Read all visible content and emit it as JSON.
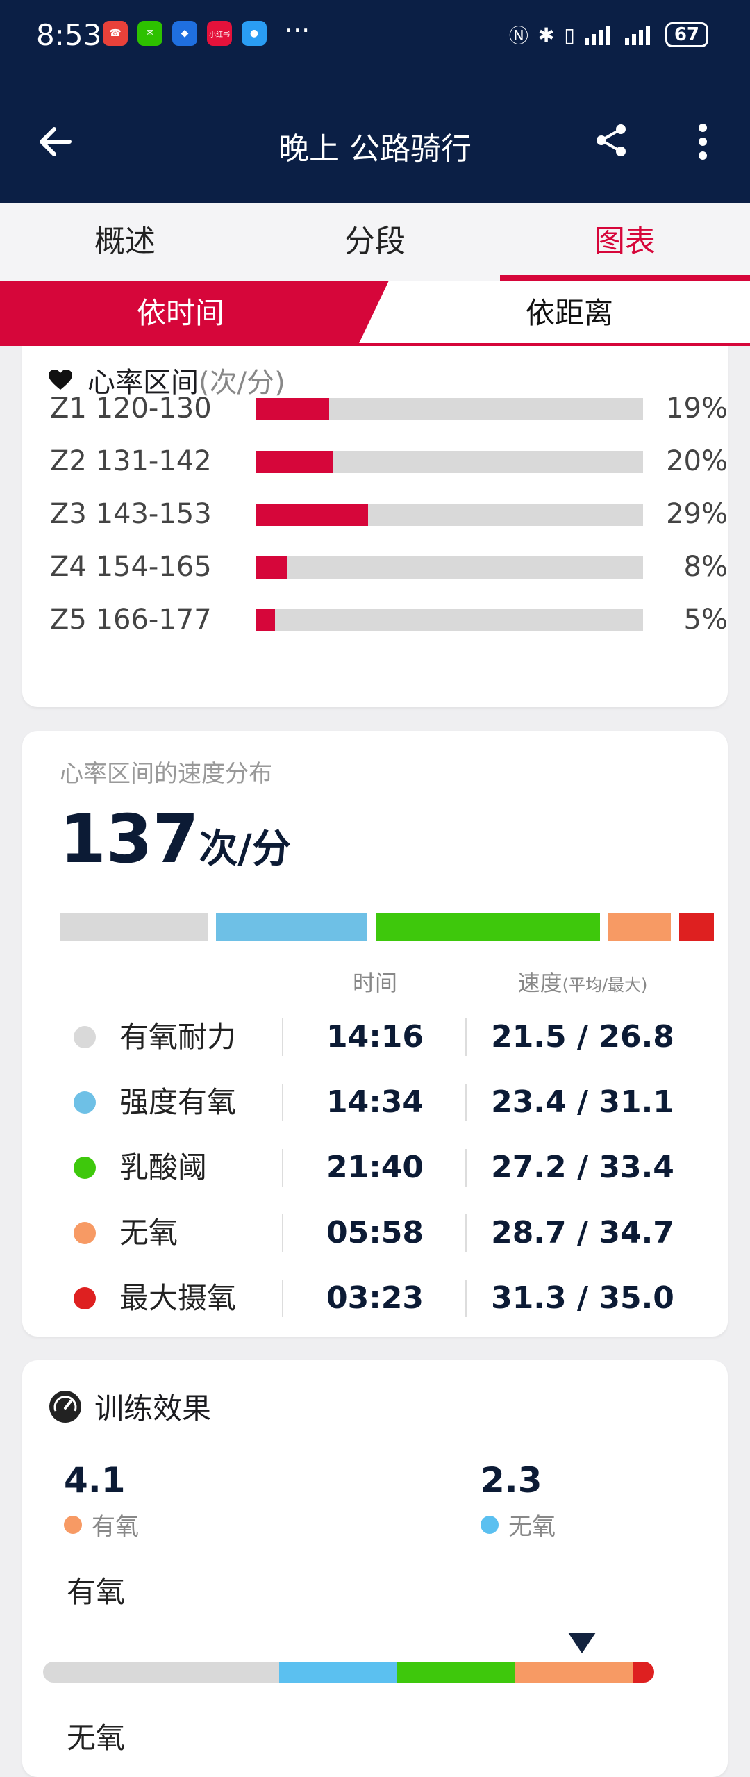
{
  "status_bar": {
    "time": "8:53",
    "apps": [
      {
        "name": "missed-call-icon",
        "color": "#e8413a",
        "glyph": "☎"
      },
      {
        "name": "wechat-icon",
        "color": "#2dc100",
        "glyph": "✉"
      },
      {
        "name": "blue-app-icon",
        "color": "#1f6fe0",
        "glyph": "◆"
      },
      {
        "name": "xiaohongshu-icon",
        "color": "#e4123b",
        "glyph": "小红书"
      },
      {
        "name": "message-icon",
        "color": "#2a9df4",
        "glyph": "●"
      }
    ],
    "more": "···",
    "battery": "67"
  },
  "app_bar": {
    "title": "晚上 公路骑行"
  },
  "tabs": {
    "items": [
      {
        "label": "概述"
      },
      {
        "label": "分段"
      },
      {
        "label": "图表"
      }
    ],
    "active_index": 2
  },
  "segmented": {
    "left": "依时间",
    "right": "依距离",
    "active": "left"
  },
  "heart_zones": {
    "title": "心率区间",
    "unit": "(次/分)",
    "zones": [
      {
        "label": "Z1  120-130",
        "pct": "19%",
        "fill": 0.19
      },
      {
        "label": "Z2  131-142",
        "pct": "20%",
        "fill": 0.2
      },
      {
        "label": "Z3  143-153",
        "pct": "29%",
        "fill": 0.29
      },
      {
        "label": "Z4  154-165",
        "pct": "8%",
        "fill": 0.08
      },
      {
        "label": "Z5  166-177",
        "pct": "5%",
        "fill": 0.05
      }
    ]
  },
  "speed_dist": {
    "subtitle": "心率区间的速度分布",
    "value": "137",
    "unit": "次/分",
    "header_time": "时间",
    "header_speed": "速度",
    "header_speed_sub": "(平均/最大)",
    "rows": [
      {
        "name": "有氧耐力",
        "color": "#d9d9d9",
        "time": "14:16",
        "speed": "21.5 / 26.8",
        "dist_weight": 14.27
      },
      {
        "name": "强度有氧",
        "color": "#6ec0e6",
        "time": "14:34",
        "speed": "23.4 / 31.1",
        "dist_weight": 14.57
      },
      {
        "name": "乳酸阈",
        "color": "#3ec80c",
        "time": "21:40",
        "speed": "27.2 / 33.4",
        "dist_weight": 21.67
      },
      {
        "name": "无氧",
        "color": "#f79a64",
        "time": "05:58",
        "speed": "28.7 / 34.7",
        "dist_weight": 5.97
      },
      {
        "name": "最大摄氧",
        "color": "#de2020",
        "time": "03:23",
        "speed": "31.3 / 35.0",
        "dist_weight": 3.38
      }
    ]
  },
  "training_effect": {
    "title": "训练效果",
    "aerobic_value": "4.1",
    "aerobic_label": "有氧",
    "aerobic_color": "#f79a64",
    "anaerobic_value": "2.3",
    "anaerobic_label": "无氧",
    "anaerobic_color": "#5bc0f0",
    "section1": "有氧",
    "section2": "无氧",
    "scale_colors": [
      "#d9d9d9",
      "#d9d9d9",
      "#5bc0f0",
      "#3ec80c",
      "#f79a64",
      "#de2020"
    ]
  }
}
